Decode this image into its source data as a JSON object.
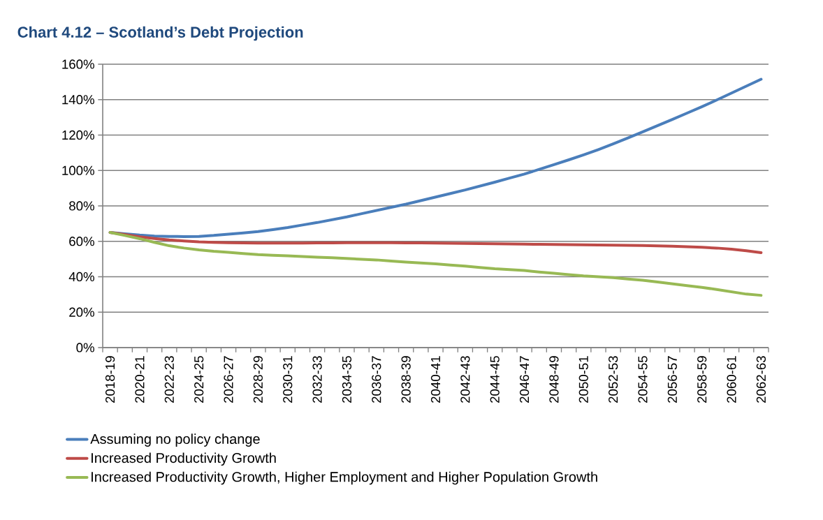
{
  "chart_data": {
    "type": "line",
    "title": "Chart 4.12 – Scotland’s Debt Projection",
    "categories": [
      "2018-19",
      null,
      "2020-21",
      null,
      "2022-23",
      null,
      "2024-25",
      null,
      "2026-27",
      null,
      "2028-29",
      null,
      "2030-31",
      null,
      "2032-33",
      null,
      "2034-35",
      null,
      "2036-37",
      null,
      "2038-39",
      null,
      "2040-41",
      null,
      "2042-43",
      null,
      "2044-45",
      null,
      "2046-47",
      null,
      "2048-49",
      null,
      "2050-51",
      null,
      "2052-53",
      null,
      "2054-55",
      null,
      "2056-57",
      null,
      "2058-59",
      null,
      "2060-61",
      null,
      "2062-63"
    ],
    "series": [
      {
        "name": "Assuming no policy change",
        "color": "#4a7ebb",
        "values": [
          65,
          64.2,
          63.5,
          63,
          62.8,
          62.7,
          62.8,
          63.3,
          64,
          64.7,
          65.5,
          66.6,
          67.8,
          69.2,
          70.6,
          72.2,
          73.8,
          75.6,
          77.4,
          79.2,
          81,
          83,
          85,
          87,
          89,
          91.2,
          93.4,
          95.7,
          98,
          100.6,
          103.3,
          106,
          108.8,
          111.8,
          115,
          118.4,
          121.8,
          125.3,
          128.8,
          132.4,
          136,
          139.8,
          143.7,
          147.6,
          151.5
        ]
      },
      {
        "name": "Increased Productivity Growth",
        "color": "#be4b48",
        "values": [
          65,
          63.8,
          62.6,
          61.6,
          60.8,
          60.2,
          59.7,
          59.4,
          59.2,
          59.1,
          59,
          59,
          59,
          59,
          59.1,
          59.1,
          59.2,
          59.2,
          59.2,
          59.2,
          59.1,
          59.1,
          59,
          58.9,
          58.8,
          58.7,
          58.6,
          58.5,
          58.4,
          58.3,
          58.2,
          58.1,
          58,
          57.9,
          57.8,
          57.7,
          57.6,
          57.4,
          57.2,
          56.9,
          56.6,
          56.2,
          55.6,
          54.7,
          53.6
        ]
      },
      {
        "name": "Increased Productivity Growth, Higher Employment and Higher Population Growth",
        "color": "#98b954",
        "values": [
          65,
          63.3,
          61.5,
          59.4,
          57.5,
          56.2,
          55.2,
          54.4,
          53.8,
          53.1,
          52.5,
          52.1,
          51.8,
          51.4,
          51,
          50.7,
          50.3,
          49.9,
          49.5,
          48.9,
          48.3,
          47.8,
          47.3,
          46.6,
          46,
          45.2,
          44.5,
          44,
          43.5,
          42.7,
          42,
          41.2,
          40.5,
          40,
          39.5,
          38.7,
          38,
          37,
          36,
          35,
          34,
          32.8,
          31.5,
          30.2,
          29.5
        ]
      }
    ],
    "ylim": [
      0,
      160
    ],
    "yticks": [
      {
        "value": 0,
        "label": "0%"
      },
      {
        "value": 20,
        "label": "20%"
      },
      {
        "value": 40,
        "label": "40%"
      },
      {
        "value": 60,
        "label": "60%"
      },
      {
        "value": 80,
        "label": "80%"
      },
      {
        "value": 100,
        "label": "100%"
      },
      {
        "value": 120,
        "label": "120%"
      },
      {
        "value": 140,
        "label": "140%"
      },
      {
        "value": 160,
        "label": "160%"
      }
    ],
    "grid": "y",
    "legend": "bottom",
    "marker": "none",
    "line_style": "solid"
  }
}
